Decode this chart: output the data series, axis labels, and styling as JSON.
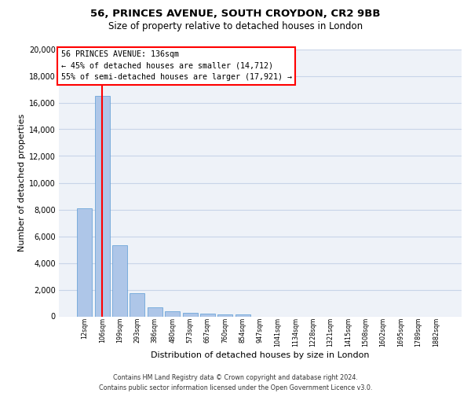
{
  "title1": "56, PRINCES AVENUE, SOUTH CROYDON, CR2 9BB",
  "title2": "Size of property relative to detached houses in London",
  "xlabel": "Distribution of detached houses by size in London",
  "ylabel": "Number of detached properties",
  "categories": [
    "12sqm",
    "106sqm",
    "199sqm",
    "293sqm",
    "386sqm",
    "480sqm",
    "573sqm",
    "667sqm",
    "760sqm",
    "854sqm",
    "947sqm",
    "1041sqm",
    "1134sqm",
    "1228sqm",
    "1321sqm",
    "1415sqm",
    "1508sqm",
    "1602sqm",
    "1695sqm",
    "1789sqm",
    "1882sqm"
  ],
  "values": [
    8100,
    16500,
    5300,
    1750,
    700,
    380,
    290,
    220,
    175,
    130,
    0,
    0,
    0,
    0,
    0,
    0,
    0,
    0,
    0,
    0,
    0
  ],
  "bar_color": "#aec6e8",
  "bar_edge_color": "#5b9bd5",
  "grid_color": "#c8d4e8",
  "background_color": "#eef2f8",
  "vline_x": 1,
  "vline_color": "red",
  "annotation_text": "56 PRINCES AVENUE: 136sqm\n← 45% of detached houses are smaller (14,712)\n55% of semi-detached houses are larger (17,921) →",
  "annotation_box_color": "white",
  "annotation_box_edge": "red",
  "footer1": "Contains HM Land Registry data © Crown copyright and database right 2024.",
  "footer2": "Contains public sector information licensed under the Open Government Licence v3.0.",
  "ylim": [
    0,
    20000
  ],
  "yticks": [
    0,
    2000,
    4000,
    6000,
    8000,
    10000,
    12000,
    14000,
    16000,
    18000,
    20000
  ]
}
